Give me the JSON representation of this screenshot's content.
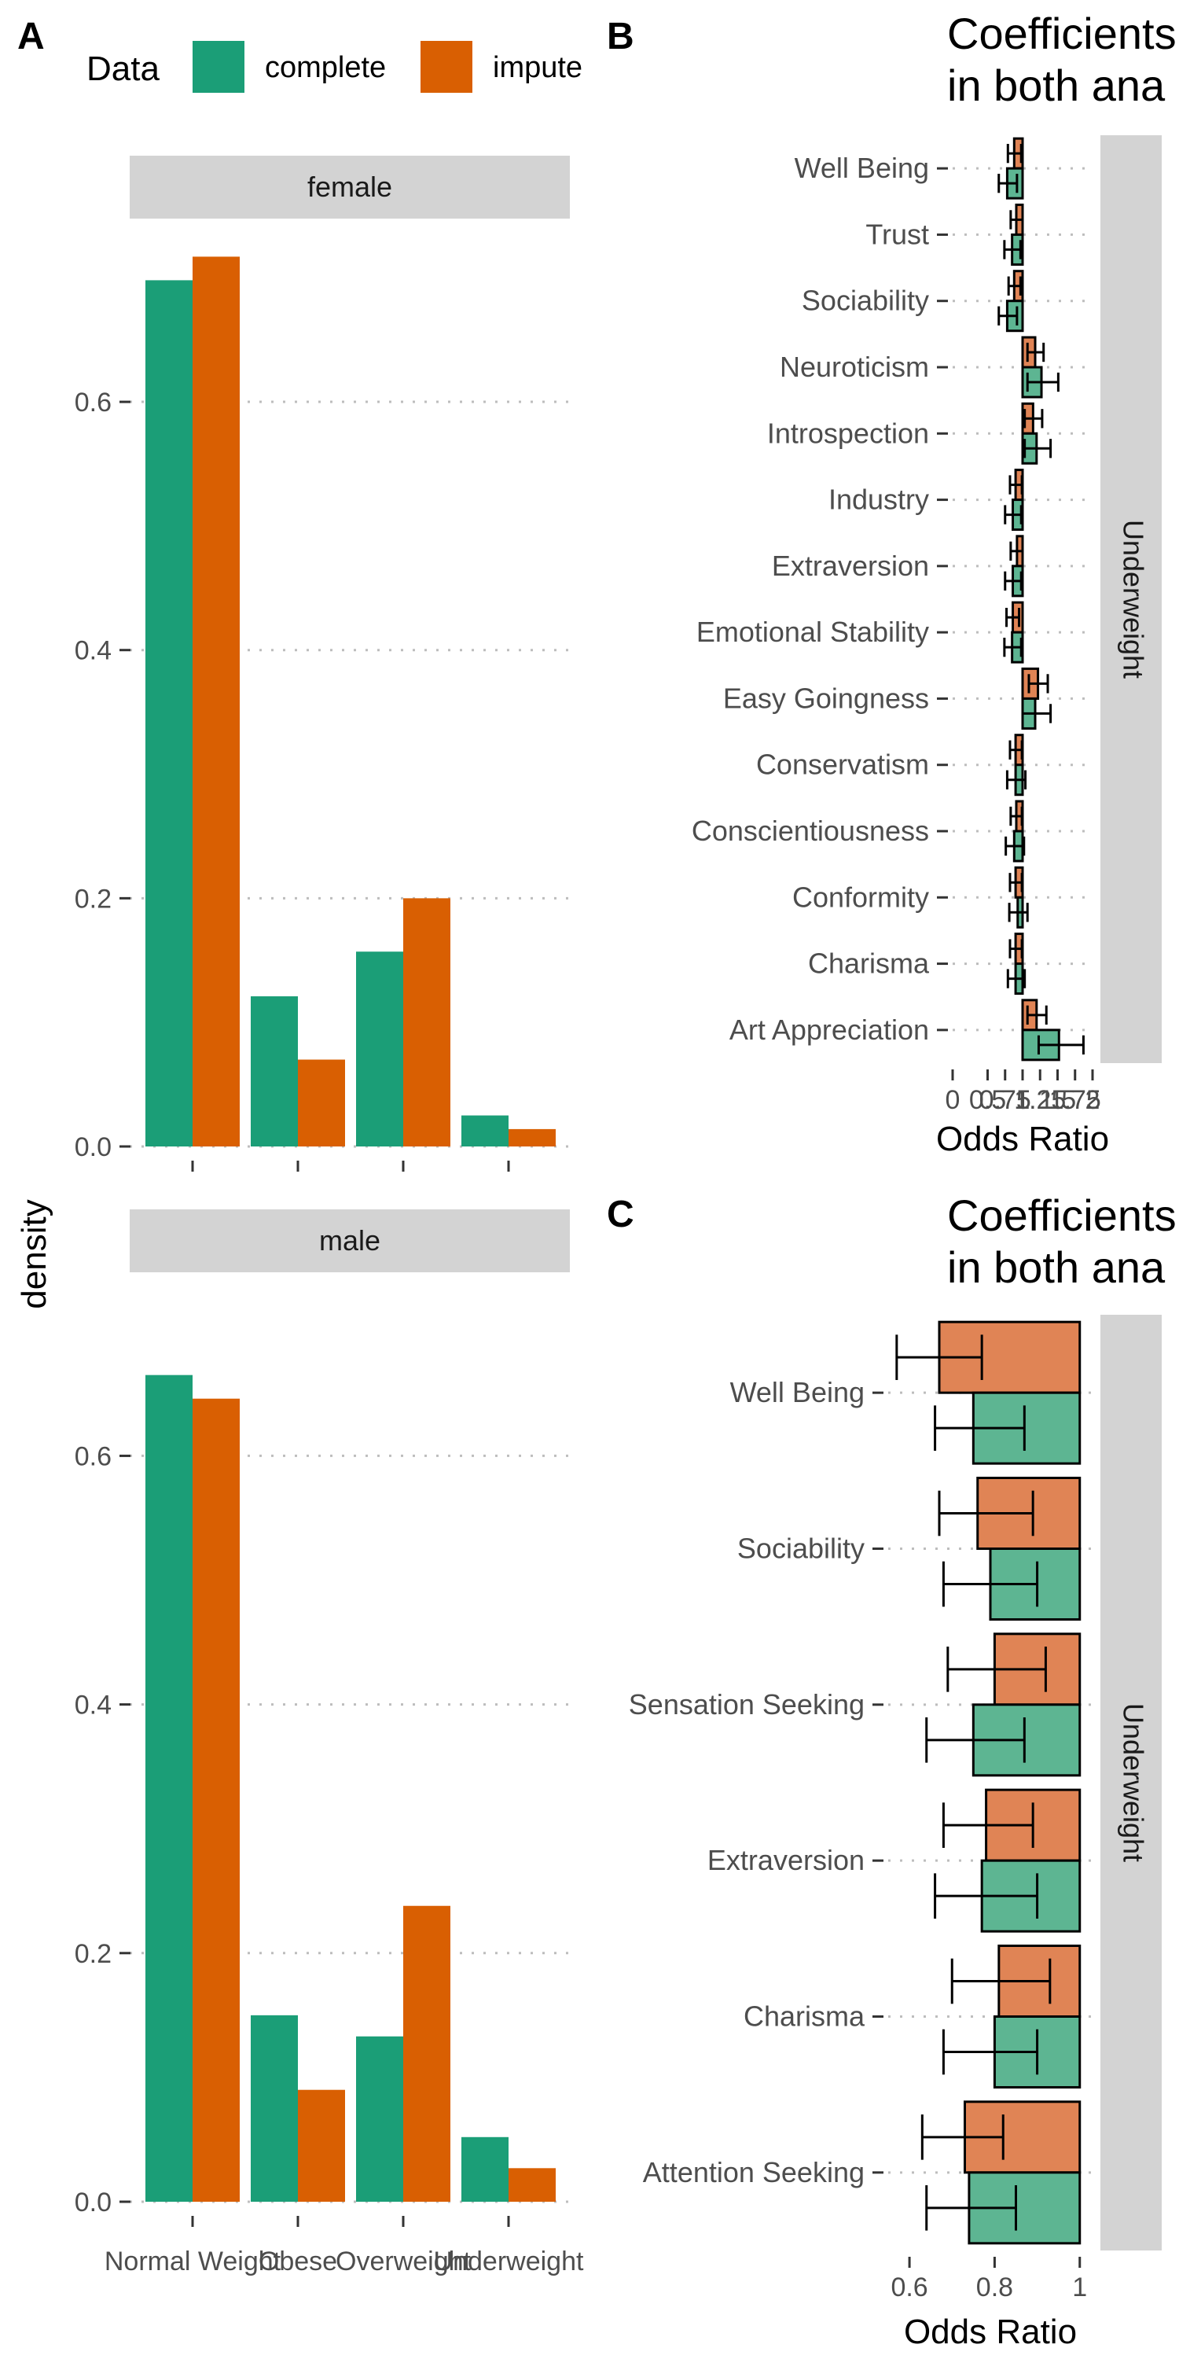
{
  "chart_data": [
    {
      "panel": "A",
      "type": "bar",
      "ylabel": "density",
      "legend": {
        "title": "Data",
        "entries": [
          "complete",
          "impute"
        ],
        "position": "top"
      },
      "categories": [
        "Normal Weight",
        "Obese",
        "Overweight",
        "Underweight"
      ],
      "yticks": [
        "0.0",
        "0.2",
        "0.4",
        "0.6"
      ],
      "ylim": [
        0,
        0.735
      ],
      "facets": [
        {
          "label": "female",
          "series": [
            {
              "name": "complete",
              "values": [
                0.698,
                0.121,
                0.157,
                0.025
              ]
            },
            {
              "name": "impute",
              "values": [
                0.717,
                0.07,
                0.2,
                0.014
              ]
            }
          ]
        },
        {
          "label": "male",
          "series": [
            {
              "name": "complete",
              "values": [
                0.665,
                0.15,
                0.133,
                0.052
              ]
            },
            {
              "name": "impute",
              "values": [
                0.646,
                0.09,
                0.238,
                0.027
              ]
            }
          ]
        }
      ],
      "colors": {
        "complete": "#1b9e77",
        "impute": "#d95f02"
      }
    },
    {
      "panel": "B",
      "type": "bar",
      "title_lines": [
        "Coefficients",
        "in both ana"
      ],
      "xlabel": "Odds Ratio",
      "xticks": [
        "0",
        "0.5",
        "0.75",
        "1",
        "1.25",
        "1.5",
        "1.75",
        "2"
      ],
      "xlim": [
        0.0,
        2.0
      ],
      "facet_label": "Underweight",
      "categories": [
        "Well Being",
        "Trust",
        "Sociability",
        "Neuroticism",
        "Introspection",
        "Industry",
        "Extraversion",
        "Emotional Stability",
        "Easy Goingness",
        "Conservatism",
        "Conscientiousness",
        "Conformity",
        "Charisma",
        "Art Appreciation"
      ],
      "series": [
        {
          "name": "impute",
          "values": [
            0.88,
            0.91,
            0.88,
            1.18,
            1.15,
            0.9,
            0.92,
            0.86,
            1.22,
            0.9,
            0.91,
            0.9,
            0.9,
            1.2
          ],
          "ci_low": [
            0.79,
            0.83,
            0.8,
            1.07,
            1.03,
            0.82,
            0.83,
            0.77,
            1.09,
            0.82,
            0.83,
            0.82,
            0.82,
            1.07
          ],
          "ci_high": [
            0.98,
            1.0,
            0.97,
            1.3,
            1.28,
            0.99,
            1.0,
            0.95,
            1.36,
            0.99,
            0.99,
            0.99,
            0.99,
            1.34
          ]
        },
        {
          "name": "complete",
          "values": [
            0.78,
            0.85,
            0.78,
            1.27,
            1.2,
            0.86,
            0.86,
            0.85,
            1.18,
            0.9,
            0.88,
            0.93,
            0.9,
            1.52
          ],
          "ci_low": [
            0.66,
            0.74,
            0.66,
            1.07,
            1.03,
            0.75,
            0.75,
            0.74,
            1.0,
            0.78,
            0.76,
            0.81,
            0.79,
            1.23
          ],
          "ci_high": [
            0.92,
            0.97,
            0.92,
            1.51,
            1.4,
            0.98,
            0.98,
            0.98,
            1.4,
            1.04,
            1.02,
            1.07,
            1.03,
            1.87
          ]
        }
      ],
      "colors": {
        "impute": "#e08455",
        "complete": "#5db592"
      }
    },
    {
      "panel": "C",
      "type": "bar",
      "title_lines": [
        "Coefficients",
        "in both ana"
      ],
      "xlabel": "Odds Ratio",
      "xticks": [
        "0.6",
        "0.8",
        "1"
      ],
      "xlim": [
        0.55,
        1.03
      ],
      "facet_label": "Underweight",
      "categories": [
        "Well Being",
        "Sociability",
        "Sensation Seeking",
        "Extraversion",
        "Charisma",
        "Attention Seeking"
      ],
      "series": [
        {
          "name": "impute",
          "values": [
            0.67,
            0.76,
            0.8,
            0.78,
            0.81,
            0.73
          ],
          "ci_low": [
            0.57,
            0.67,
            0.69,
            0.68,
            0.7,
            0.63
          ],
          "ci_high": [
            0.77,
            0.89,
            0.92,
            0.89,
            0.93,
            0.82
          ]
        },
        {
          "name": "complete",
          "values": [
            0.75,
            0.79,
            0.75,
            0.77,
            0.8,
            0.74
          ],
          "ci_low": [
            0.66,
            0.68,
            0.64,
            0.66,
            0.68,
            0.64
          ],
          "ci_high": [
            0.87,
            0.9,
            0.87,
            0.9,
            0.9,
            0.85
          ]
        }
      ],
      "colors": {
        "impute": "#e08455",
        "complete": "#5db592"
      }
    }
  ]
}
